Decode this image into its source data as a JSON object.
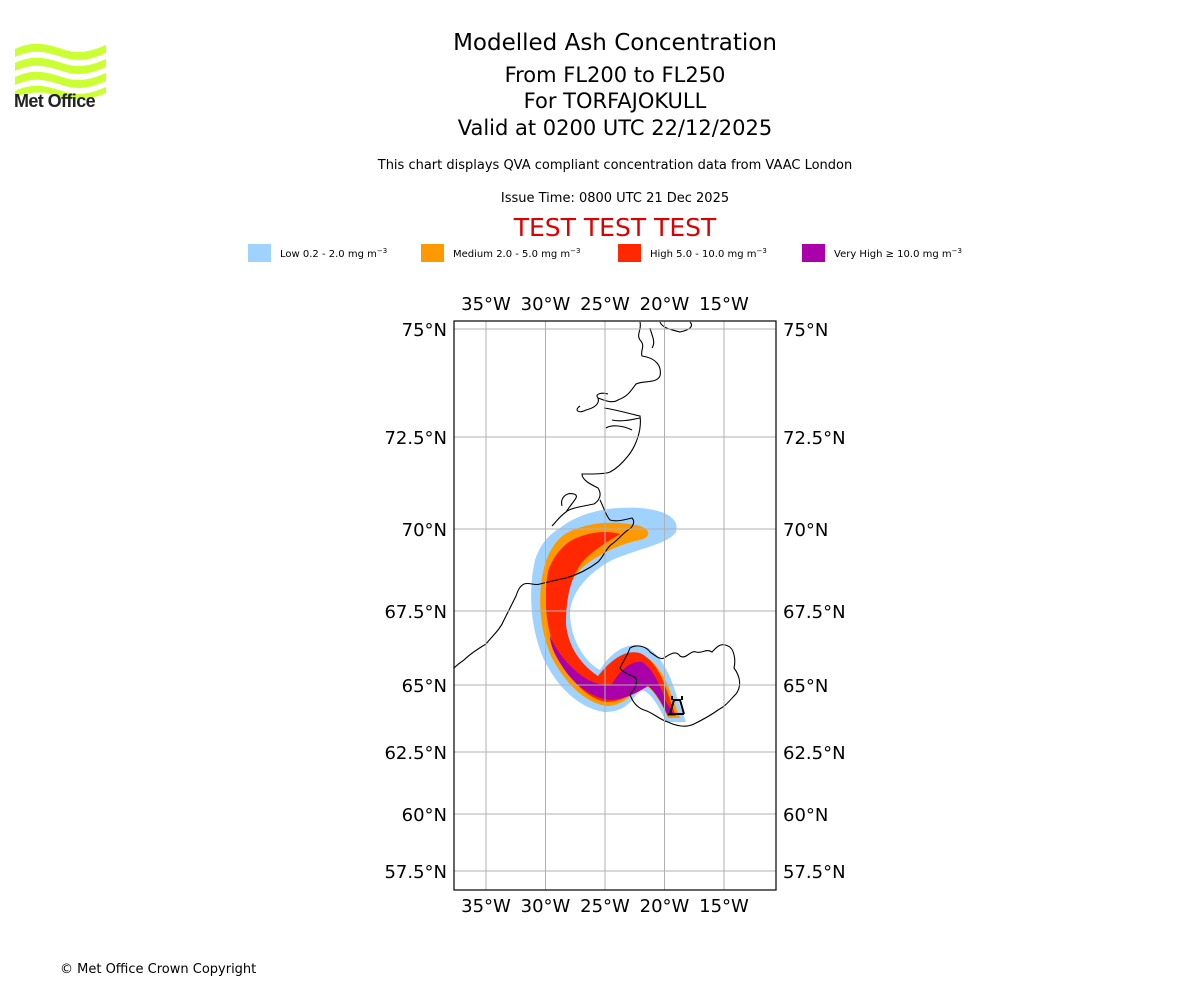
{
  "header": {
    "logo_text": "Met Office",
    "logo_color": "#ccff33",
    "title": "Modelled Ash Concentration",
    "levels": "From FL200 to FL250",
    "volcano": "For TORFAJOKULL",
    "valid_time": "Valid at 0200 UTC 22/12/2025",
    "subtitle": "This chart displays QVA compliant concentration data from VAAC London",
    "issue_time": "Issue Time: 0800 UTC 21 Dec 2025",
    "test_banner": "TEST TEST TEST",
    "test_color": "#dd0000"
  },
  "legend": [
    {
      "name": "Low",
      "range": "0.2 - 2.0",
      "unit": "mg m",
      "exp": "−3",
      "color": "#a0d2ff"
    },
    {
      "name": "Medium",
      "range": "2.0 - 5.0",
      "unit": "mg m",
      "exp": "−3",
      "color": "#ff9900"
    },
    {
      "name": "High",
      "range": "5.0 - 10.0",
      "unit": "mg m",
      "exp": "−3",
      "color": "#ff2800"
    },
    {
      "name": "Very High",
      "range": "≥ 10.0",
      "unit": "mg m",
      "exp": "−3",
      "color": "#aa00aa"
    }
  ],
  "map": {
    "lon_ticks": [
      {
        "value": -35,
        "label": "35°W"
      },
      {
        "value": -30,
        "label": "30°W"
      },
      {
        "value": -25,
        "label": "25°W"
      },
      {
        "value": -20,
        "label": "20°W"
      },
      {
        "value": -15,
        "label": "15°W"
      }
    ],
    "lat_ticks": [
      {
        "value": 75,
        "label": "75°N"
      },
      {
        "value": 72.5,
        "label": "72.5°N"
      },
      {
        "value": 70,
        "label": "70°N"
      },
      {
        "value": 67.5,
        "label": "67.5°N"
      },
      {
        "value": 65,
        "label": "65°N"
      },
      {
        "value": 62.5,
        "label": "62.5°N"
      },
      {
        "value": 60,
        "label": "60°N"
      },
      {
        "value": 57.5,
        "label": "57.5°N"
      }
    ],
    "volcano_marker": "volcano-icon",
    "volcano_location": {
      "lat": 63.9,
      "lon": -19.1
    }
  },
  "footer": {
    "copyright": "© Met Office Crown Copyright"
  }
}
